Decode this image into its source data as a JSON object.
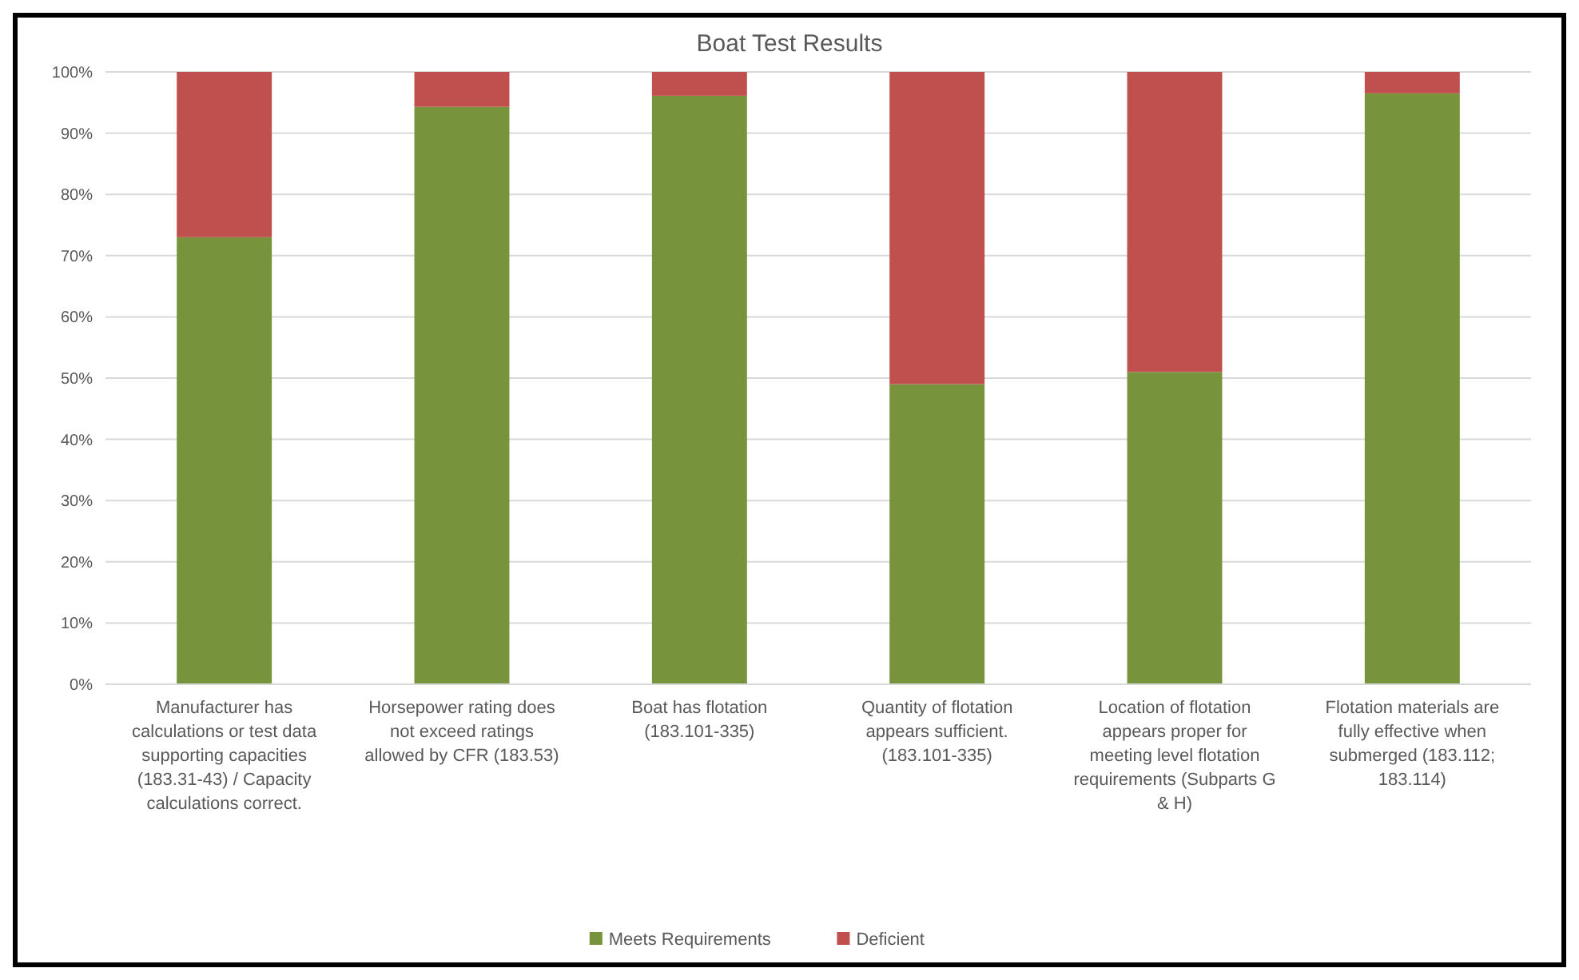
{
  "chart_data": {
    "type": "bar",
    "title": "Boat Test Results",
    "stacked": true,
    "categories": [
      "Manufacturer has calculations or test data supporting capacities (183.31-43) / Capacity calculations correct.",
      "Horsepower rating does not exceed ratings allowed by CFR (183.53)",
      "Boat has flotation (183.101-335)",
      "Quantity of flotation appears sufficient. (183.101-335)",
      "Location of flotation appears proper for meeting level flotation requirements (Subparts G & H)",
      "Flotation materials are fully effective when submerged (183.112; 183.114)"
    ],
    "series": [
      {
        "name": "Meets Requirements",
        "color": "#77933c",
        "values": [
          73,
          94.3,
          96.1,
          49,
          51,
          96.5
        ]
      },
      {
        "name": "Deficient",
        "color": "#c0504d",
        "values": [
          27,
          5.7,
          3.9,
          51,
          49,
          3.5
        ]
      }
    ],
    "ylim": [
      0,
      100
    ],
    "yticks": [
      {
        "value": 0,
        "label": "0%"
      },
      {
        "value": 10,
        "label": "10%"
      },
      {
        "value": 20,
        "label": "20%"
      },
      {
        "value": 30,
        "label": "30%"
      },
      {
        "value": 40,
        "label": "40%"
      },
      {
        "value": 50,
        "label": "50%"
      },
      {
        "value": 60,
        "label": "60%"
      },
      {
        "value": 70,
        "label": "70%"
      },
      {
        "value": 80,
        "label": "80%"
      },
      {
        "value": 90,
        "label": "90%"
      },
      {
        "value": 100,
        "label": "100%"
      }
    ],
    "grid": "y",
    "legend": "bottom"
  }
}
